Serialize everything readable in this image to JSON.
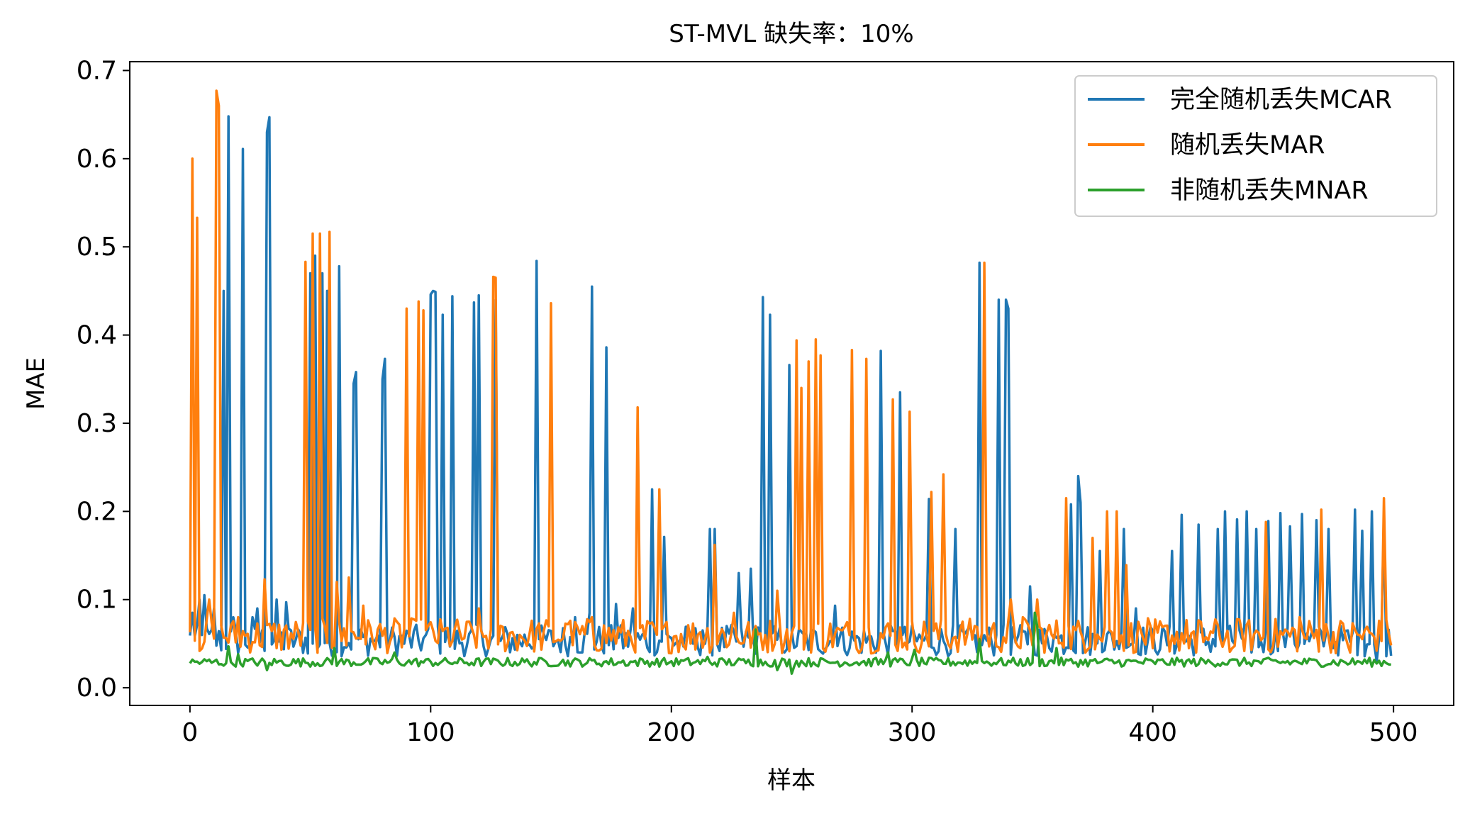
{
  "chart_data": {
    "type": "line",
    "title": "ST-MVL 缺失率：10%",
    "xlabel": "样本",
    "ylabel": "MAE",
    "xlim": [
      -25,
      525
    ],
    "ylim": [
      -0.02,
      0.71
    ],
    "xticks": [
      0,
      100,
      200,
      300,
      400,
      500
    ],
    "yticks": [
      0.0,
      0.1,
      0.2,
      0.3,
      0.4,
      0.5,
      0.6,
      0.7
    ],
    "xtick_labels": [
      "0",
      "100",
      "200",
      "300",
      "400",
      "500"
    ],
    "ytick_labels": [
      "0.0",
      "0.1",
      "0.2",
      "0.3",
      "0.4",
      "0.5",
      "0.6",
      "0.7"
    ],
    "grid": false,
    "legend_position": "top-right",
    "series": [
      {
        "name": "完全随机丢失MCAR",
        "color": "#1f77b4",
        "baseline": 0.05,
        "noise": 0.018,
        "spikes": [
          [
            1,
            0.085
          ],
          [
            4,
            0.1
          ],
          [
            6,
            0.105
          ],
          [
            10,
            0.09
          ],
          [
            14,
            0.45
          ],
          [
            16,
            0.648
          ],
          [
            18,
            0.08
          ],
          [
            22,
            0.611
          ],
          [
            26,
            0.08
          ],
          [
            28,
            0.09
          ],
          [
            32,
            0.63
          ],
          [
            33,
            0.647
          ],
          [
            36,
            0.1
          ],
          [
            40,
            0.097
          ],
          [
            50,
            0.47
          ],
          [
            52,
            0.49
          ],
          [
            55,
            0.47
          ],
          [
            57,
            0.45
          ],
          [
            62,
            0.478
          ],
          [
            68,
            0.345
          ],
          [
            69,
            0.358
          ],
          [
            80,
            0.35
          ],
          [
            81,
            0.373
          ],
          [
            100,
            0.446
          ],
          [
            101,
            0.45
          ],
          [
            102,
            0.449
          ],
          [
            105,
            0.423
          ],
          [
            109,
            0.444
          ],
          [
            118,
            0.437
          ],
          [
            120,
            0.445
          ],
          [
            127,
            0.44
          ],
          [
            144,
            0.484
          ],
          [
            160,
            0.08
          ],
          [
            166,
            0.085
          ],
          [
            167,
            0.455
          ],
          [
            173,
            0.386
          ],
          [
            177,
            0.095
          ],
          [
            184,
            0.09
          ],
          [
            192,
            0.225
          ],
          [
            197,
            0.171
          ],
          [
            213,
            0.065
          ],
          [
            216,
            0.18
          ],
          [
            218,
            0.18
          ],
          [
            228,
            0.13
          ],
          [
            233,
            0.135
          ],
          [
            238,
            0.443
          ],
          [
            241,
            0.423
          ],
          [
            249,
            0.366
          ],
          [
            268,
            0.093
          ],
          [
            287,
            0.382
          ],
          [
            295,
            0.335
          ],
          [
            307,
            0.214
          ],
          [
            318,
            0.18
          ],
          [
            328,
            0.482
          ],
          [
            336,
            0.44
          ],
          [
            339,
            0.44
          ],
          [
            340,
            0.43
          ],
          [
            349,
            0.115
          ],
          [
            359,
            0.06
          ],
          [
            366,
            0.208
          ],
          [
            369,
            0.24
          ],
          [
            370,
            0.21
          ],
          [
            378,
            0.155
          ],
          [
            388,
            0.18
          ],
          [
            393,
            0.09
          ],
          [
            408,
            0.155
          ],
          [
            412,
            0.196
          ],
          [
            419,
            0.185
          ],
          [
            427,
            0.18
          ],
          [
            430,
            0.2
          ],
          [
            435,
            0.191
          ],
          [
            439,
            0.2
          ],
          [
            443,
            0.18
          ],
          [
            448,
            0.189
          ],
          [
            453,
            0.198
          ],
          [
            457,
            0.183
          ],
          [
            462,
            0.197
          ],
          [
            468,
            0.19
          ],
          [
            473,
            0.18
          ],
          [
            484,
            0.202
          ],
          [
            487,
            0.178
          ],
          [
            491,
            0.2
          ],
          [
            493,
            0.03
          ],
          [
            496,
            0.186
          ]
        ]
      },
      {
        "name": "随机丢失MAR",
        "color": "#ff7f0e",
        "baseline": 0.055,
        "noise": 0.02,
        "spikes": [
          [
            1,
            0.6
          ],
          [
            3,
            0.533
          ],
          [
            8,
            0.1
          ],
          [
            11,
            0.677
          ],
          [
            12,
            0.66
          ],
          [
            20,
            0.08
          ],
          [
            31,
            0.123
          ],
          [
            48,
            0.483
          ],
          [
            51,
            0.515
          ],
          [
            54,
            0.515
          ],
          [
            58,
            0.517
          ],
          [
            61,
            0.12
          ],
          [
            66,
            0.125
          ],
          [
            72,
            0.093
          ],
          [
            90,
            0.43
          ],
          [
            95,
            0.438
          ],
          [
            97,
            0.428
          ],
          [
            120,
            0.09
          ],
          [
            126,
            0.466
          ],
          [
            127,
            0.465
          ],
          [
            150,
            0.436
          ],
          [
            157,
            0.072
          ],
          [
            167,
            0.08
          ],
          [
            186,
            0.318
          ],
          [
            195,
            0.225
          ],
          [
            212,
            0.063
          ],
          [
            218,
            0.162
          ],
          [
            226,
            0.085
          ],
          [
            235,
            0.07
          ],
          [
            244,
            0.11
          ],
          [
            252,
            0.394
          ],
          [
            254,
            0.34
          ],
          [
            257,
            0.37
          ],
          [
            260,
            0.395
          ],
          [
            262,
            0.377
          ],
          [
            275,
            0.383
          ],
          [
            281,
            0.373
          ],
          [
            292,
            0.327
          ],
          [
            299,
            0.313
          ],
          [
            308,
            0.222
          ],
          [
            313,
            0.242
          ],
          [
            326,
            0.07
          ],
          [
            330,
            0.482
          ],
          [
            341,
            0.1
          ],
          [
            346,
            0.08
          ],
          [
            352,
            0.1
          ],
          [
            358,
            0.06
          ],
          [
            364,
            0.215
          ],
          [
            375,
            0.17
          ],
          [
            381,
            0.2
          ],
          [
            385,
            0.2
          ],
          [
            389,
            0.139
          ],
          [
            400,
            0.045
          ],
          [
            418,
            0.04
          ],
          [
            433,
            0.045
          ],
          [
            447,
            0.188
          ],
          [
            461,
            0.08
          ],
          [
            470,
            0.202
          ],
          [
            482,
            0.04
          ],
          [
            496,
            0.215
          ],
          [
            499,
            0.048
          ]
        ]
      },
      {
        "name": "非随机丢失MNAR",
        "color": "#2ca02c",
        "baseline": 0.028,
        "noise": 0.005,
        "spikes": [
          [
            16,
            0.047
          ],
          [
            20,
            0.038
          ],
          [
            32,
            0.02
          ],
          [
            60,
            0.045
          ],
          [
            85,
            0.04
          ],
          [
            215,
            0.035
          ],
          [
            235,
            0.066
          ],
          [
            244,
            0.02
          ],
          [
            250,
            0.016
          ],
          [
            290,
            0.04
          ],
          [
            301,
            0.043
          ],
          [
            328,
            0.055
          ],
          [
            351,
            0.085
          ],
          [
            352,
            0.07
          ],
          [
            360,
            0.045
          ],
          [
            400,
            0.03
          ]
        ]
      }
    ]
  }
}
